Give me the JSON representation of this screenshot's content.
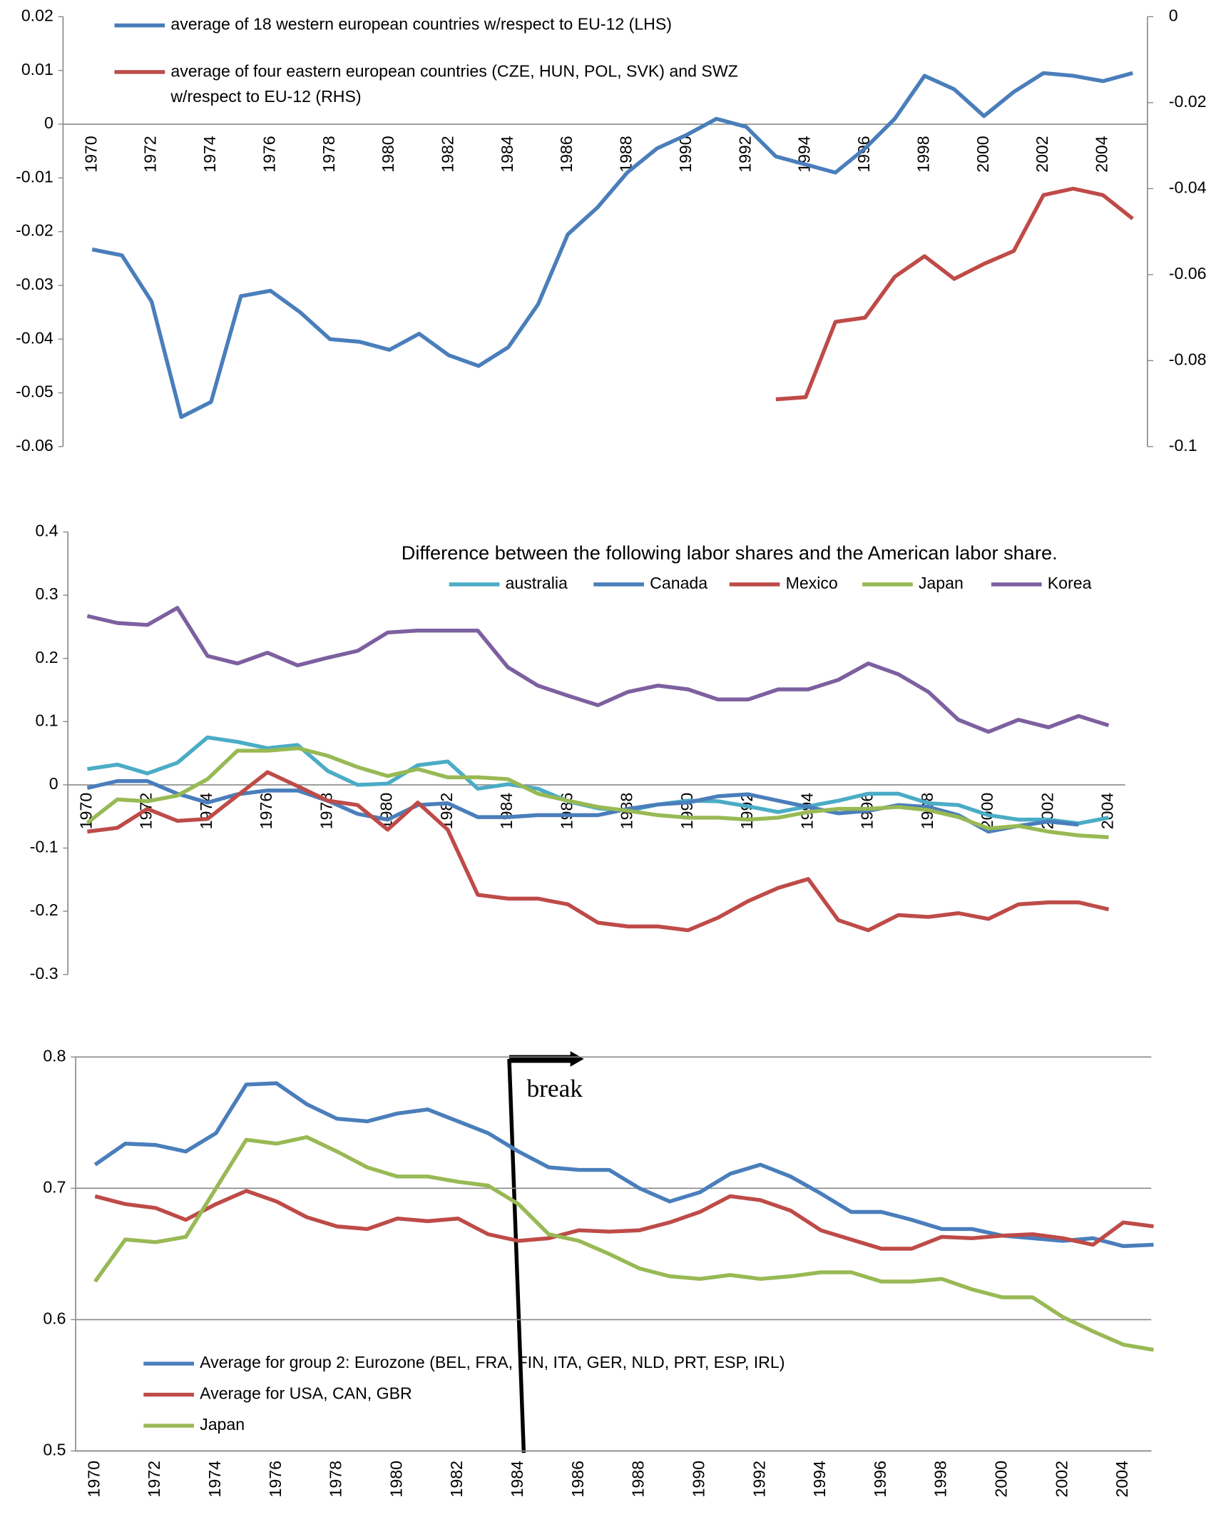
{
  "chart_data": [
    {
      "type": "line",
      "categories": [
        "1970",
        null,
        "1972",
        null,
        "1974",
        null,
        "1976",
        null,
        "1978",
        null,
        "1980",
        null,
        "1982",
        null,
        "1984",
        null,
        "1986",
        null,
        "1988",
        null,
        "1990",
        null,
        "1992",
        null,
        "1994",
        null,
        "1996",
        null,
        "1998",
        null,
        "2000",
        null,
        "2002",
        null,
        "2004",
        null
      ],
      "ylim": [
        -0.06,
        0.02
      ],
      "yticks": [
        0.02,
        0.01,
        0,
        -0.01,
        -0.02,
        -0.03,
        -0.04,
        -0.05,
        -0.06
      ],
      "y2lim": [
        -0.1,
        0
      ],
      "y2ticks": [
        0,
        -0.02,
        -0.04,
        -0.06,
        -0.08,
        -0.1
      ],
      "series": [
        {
          "name": "average of 18 western european countries w/respect to EU-12 (LHS)",
          "color": "#4a7ebb",
          "values": [
            -0.0233,
            -0.0244,
            -0.033,
            -0.0545,
            -0.0517,
            -0.032,
            -0.031,
            -0.035,
            -0.04,
            -0.0405,
            -0.042,
            -0.039,
            -0.043,
            -0.045,
            -0.0415,
            -0.0335,
            -0.0205,
            -0.0155,
            -0.009,
            -0.0045,
            -0.002,
            0.001,
            -0.0005,
            -0.006,
            -0.0075,
            -0.009,
            -0.0045,
            0.001,
            0.009,
            0.0065,
            0.0015,
            0.006,
            0.0095,
            0.009,
            0.008,
            0.0095
          ]
        },
        {
          "name": "average of four eastern european countries (CZE, HUN, POL, SVK) and SWZ w/respect to EU-12 (RHS)",
          "color": "#be4b48",
          "axis": "y2",
          "values": [
            null,
            null,
            null,
            null,
            null,
            null,
            null,
            null,
            null,
            null,
            null,
            null,
            null,
            null,
            null,
            null,
            null,
            null,
            null,
            null,
            null,
            null,
            null,
            -0.089,
            -0.0885,
            -0.071,
            -0.07,
            -0.0605,
            -0.0557,
            -0.061,
            -0.0575,
            -0.0545,
            -0.0415,
            -0.04,
            -0.0415,
            -0.047
          ]
        }
      ]
    },
    {
      "type": "line",
      "title": "Difference between the following labor shares and the American labor share.",
      "categories": [
        "1970",
        null,
        "1972",
        null,
        "1974",
        null,
        "1976",
        null,
        "1978",
        null,
        "1980",
        null,
        "1982",
        null,
        "1984",
        null,
        "1986",
        null,
        "1988",
        null,
        "1990",
        null,
        "1992",
        null,
        "1994",
        null,
        "1996",
        null,
        "1998",
        null,
        "2000",
        null,
        "2002",
        null,
        "2004"
      ],
      "ylim": [
        -0.3,
        0.4
      ],
      "yticks": [
        0.4,
        0.3,
        0.2,
        0.1,
        0,
        -0.1,
        -0.2,
        -0.3
      ],
      "series": [
        {
          "name": "australia",
          "color": "#4bacc6",
          "values": [
            0.025,
            0.032,
            0.018,
            0.035,
            0.075,
            0.068,
            0.058,
            0.063,
            0.022,
            0,
            0.002,
            0.031,
            0.037,
            -0.006,
            0.001,
            -0.006,
            -0.026,
            -0.037,
            -0.041,
            -0.031,
            -0.025,
            -0.026,
            -0.034,
            -0.043,
            -0.034,
            -0.025,
            -0.014,
            -0.014,
            -0.029,
            -0.032,
            -0.048,
            -0.055,
            -0.055,
            -0.061,
            -0.052
          ]
        },
        {
          "name": "Canada",
          "color": "#4a7ebb",
          "values": [
            -0.005,
            0.006,
            0.006,
            -0.014,
            -0.028,
            -0.015,
            -0.009,
            -0.009,
            -0.025,
            -0.046,
            -0.055,
            -0.032,
            -0.029,
            -0.051,
            -0.051,
            -0.048,
            -0.048,
            -0.048,
            -0.038,
            -0.031,
            -0.028,
            -0.018,
            -0.015,
            -0.025,
            -0.035,
            -0.045,
            -0.041,
            -0.032,
            -0.035,
            -0.048,
            -0.074,
            -0.065,
            -0.058,
            -0.063,
            null
          ]
        },
        {
          "name": "Mexico",
          "color": "#be4b48",
          "values": [
            -0.074,
            -0.068,
            -0.038,
            -0.057,
            -0.054,
            -0.017,
            0.02,
            -0.002,
            -0.025,
            -0.032,
            -0.071,
            -0.028,
            -0.071,
            -0.174,
            -0.18,
            -0.18,
            -0.189,
            -0.218,
            -0.224,
            -0.224,
            -0.23,
            -0.21,
            -0.184,
            -0.163,
            -0.149,
            -0.214,
            -0.23,
            -0.206,
            -0.209,
            -0.203,
            -0.212,
            -0.189,
            -0.186,
            -0.186,
            -0.197
          ]
        },
        {
          "name": "Japan",
          "color": "#98b954",
          "values": [
            -0.06,
            -0.023,
            -0.026,
            -0.017,
            0.009,
            0.054,
            0.054,
            0.058,
            0.046,
            0.028,
            0.014,
            0.025,
            0.012,
            0.012,
            0.009,
            -0.014,
            -0.025,
            -0.035,
            -0.041,
            -0.048,
            -0.052,
            -0.052,
            -0.055,
            -0.052,
            -0.043,
            -0.038,
            -0.038,
            -0.035,
            -0.04,
            -0.051,
            -0.069,
            -0.065,
            -0.074,
            -0.08,
            -0.083
          ]
        },
        {
          "name": "Korea",
          "color": "#7d60a0",
          "values": [
            0.267,
            0.256,
            0.253,
            0.28,
            0.204,
            0.192,
            0.209,
            0.189,
            0.201,
            0.212,
            0.241,
            0.244,
            0.244,
            0.244,
            0.186,
            0.157,
            0.141,
            0.126,
            0.147,
            0.157,
            0.151,
            0.135,
            0.135,
            0.151,
            0.151,
            0.166,
            0.192,
            0.175,
            0.147,
            0.103,
            0.084,
            0.103,
            0.091,
            0.109,
            0.094
          ]
        }
      ]
    },
    {
      "type": "line",
      "annotation": "break",
      "categories": [
        "1970",
        null,
        "1972",
        null,
        "1974",
        null,
        "1976",
        null,
        "1978",
        null,
        "1980",
        null,
        "1982",
        null,
        "1984",
        null,
        "1986",
        null,
        "1988",
        null,
        "1990",
        null,
        "1992",
        null,
        "1994",
        null,
        "1996",
        null,
        "1998",
        null,
        "2000",
        null,
        "2002",
        null,
        "2004",
        null
      ],
      "ylim": [
        0.5,
        0.8
      ],
      "yticks": [
        0.8,
        0.7,
        0.6,
        0.5
      ],
      "grid": true,
      "series": [
        {
          "name": "Average for group 2: Eurozone (BEL, FRA, FIN, ITA, GER, NLD, PRT, ESP, IRL)",
          "color": "#4a7ebb",
          "values": [
            0.718,
            0.734,
            0.733,
            0.728,
            0.742,
            0.779,
            0.78,
            0.764,
            0.753,
            0.751,
            0.757,
            0.76,
            0.751,
            0.742,
            0.728,
            0.716,
            0.714,
            0.714,
            0.7,
            0.69,
            0.697,
            0.711,
            0.718,
            0.709,
            0.696,
            0.682,
            0.682,
            0.676,
            0.669,
            0.669,
            0.664,
            0.662,
            0.66,
            0.662,
            0.656,
            0.657
          ]
        },
        {
          "name": "Average for USA, CAN, GBR",
          "color": "#be4b48",
          "values": [
            0.694,
            0.688,
            0.685,
            0.676,
            0.688,
            0.698,
            0.69,
            0.678,
            0.671,
            0.669,
            0.677,
            0.675,
            0.677,
            0.665,
            0.66,
            0.662,
            0.668,
            0.667,
            0.668,
            0.674,
            0.682,
            0.694,
            0.691,
            0.683,
            0.668,
            0.661,
            0.654,
            0.654,
            0.663,
            0.662,
            0.664,
            0.665,
            0.662,
            0.657,
            0.674,
            0.671
          ]
        },
        {
          "name": "Japan",
          "color": "#98b954",
          "values": [
            0.629,
            0.661,
            0.659,
            0.663,
            0.7,
            0.737,
            0.734,
            0.739,
            0.728,
            0.716,
            0.709,
            0.709,
            0.705,
            0.702,
            0.688,
            0.665,
            0.66,
            0.65,
            0.639,
            0.633,
            0.631,
            0.634,
            0.631,
            0.633,
            0.636,
            0.636,
            0.629,
            0.629,
            0.631,
            0.623,
            0.617,
            0.617,
            0.602,
            0.591,
            0.581,
            0.577
          ]
        }
      ]
    }
  ]
}
